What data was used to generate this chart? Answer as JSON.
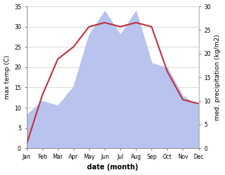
{
  "months": [
    "Jan",
    "Feb",
    "Mar",
    "Apr",
    "May",
    "Jun",
    "Jul",
    "Aug",
    "Sep",
    "Oct",
    "Nov",
    "Dec"
  ],
  "temp": [
    1,
    13,
    22,
    25,
    30,
    31,
    30,
    31,
    30,
    19,
    12,
    11
  ],
  "precip": [
    7,
    10,
    9,
    13,
    24,
    29,
    24,
    29,
    18,
    17,
    11,
    9
  ],
  "temp_color": "#c03040",
  "precip_fill_color": "#b8c4ee",
  "temp_ylim": [
    0,
    35
  ],
  "precip_ylim": [
    0,
    30
  ],
  "temp_yticks": [
    0,
    5,
    10,
    15,
    20,
    25,
    30,
    35
  ],
  "precip_yticks": [
    0,
    5,
    10,
    15,
    20,
    25,
    30
  ],
  "ylabel_left": "max temp (C)",
  "ylabel_right": "med. precipitation (kg/m2)",
  "xlabel": "date (month)",
  "axis_fontsize": 6.5,
  "tick_fontsize": 5.5,
  "xlabel_fontsize": 7,
  "bg_color": "#f0f0f0"
}
